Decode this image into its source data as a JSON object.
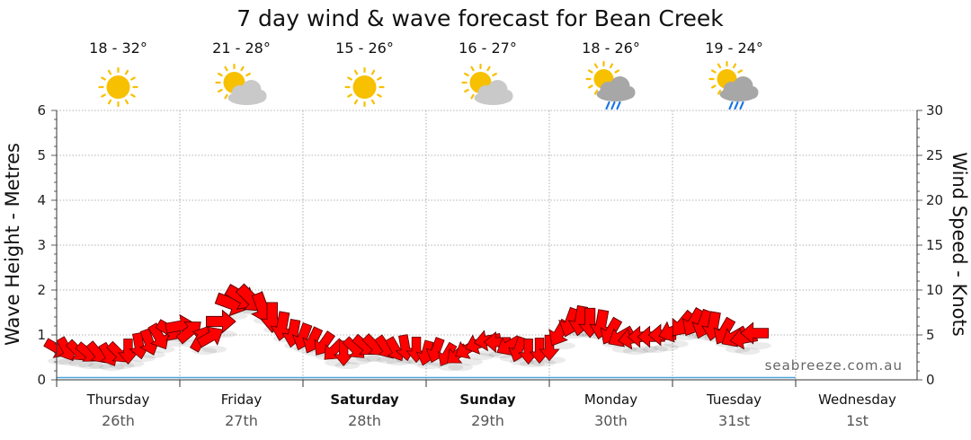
{
  "colors": {
    "arrow_fill": "#ff0000",
    "arrow_stroke": "#5a0000",
    "sun": "#f7c000",
    "cloud": "#c9c9c9",
    "rain": "#1a73e8"
  },
  "forecast": [
    {
      "temp": "18 - 32°",
      "icon": "sunny-icon"
    },
    {
      "temp": "21 - 28°",
      "icon": "partly-cloudy-icon"
    },
    {
      "temp": "15 - 26°",
      "icon": "sunny-icon"
    },
    {
      "temp": "16 - 27°",
      "icon": "partly-cloudy-icon"
    },
    {
      "temp": "18 - 26°",
      "icon": "sun-cloud-rain-icon"
    },
    {
      "temp": "19 - 24°",
      "icon": "sun-cloud-rain-icon"
    }
  ],
  "days": [
    {
      "name": "Thursday",
      "date": "26th",
      "bold": false
    },
    {
      "name": "Friday",
      "date": "27th",
      "bold": false
    },
    {
      "name": "Saturday",
      "date": "28th",
      "bold": true
    },
    {
      "name": "Sunday",
      "date": "29th",
      "bold": true
    },
    {
      "name": "Monday",
      "date": "30th",
      "bold": false
    },
    {
      "name": "Tuesday",
      "date": "31st",
      "bold": false
    },
    {
      "name": "Wednesday",
      "date": "1st",
      "bold": false
    }
  ],
  "watermark": "seabreeze.com.au",
  "chart_data": {
    "type": "line",
    "title": "7 day wind & wave forecast for Bean Creek",
    "ylabel_left": "Wave Height - Metres",
    "ylabel_right": "Wind Speed - Knots",
    "ylim_left": [
      0,
      6
    ],
    "ylim_right": [
      0,
      30
    ],
    "yticks_left": [
      "0",
      "1",
      "2",
      "3",
      "4",
      "5",
      "6"
    ],
    "yticks_right": [
      "0",
      "5",
      "10",
      "15",
      "20",
      "25",
      "30"
    ],
    "x_unit": "days from Thursday 26th 00:00",
    "grid": true,
    "series": [
      {
        "name": "wind",
        "points": [
          {
            "t": 0.0,
            "speed": 3.5,
            "dir": 30
          },
          {
            "t": 0.08,
            "speed": 3.4,
            "dir": 60
          },
          {
            "t": 0.17,
            "speed": 3.2,
            "dir": 45
          },
          {
            "t": 0.25,
            "speed": 3.0,
            "dir": 40
          },
          {
            "t": 0.33,
            "speed": 3.0,
            "dir": 50
          },
          {
            "t": 0.42,
            "speed": 2.8,
            "dir": 60
          },
          {
            "t": 0.5,
            "speed": 3.0,
            "dir": 45
          },
          {
            "t": 0.58,
            "speed": 3.2,
            "dir": 90
          },
          {
            "t": 0.67,
            "speed": 3.8,
            "dir": 80
          },
          {
            "t": 0.75,
            "speed": 4.2,
            "dir": 70
          },
          {
            "t": 0.83,
            "speed": 4.8,
            "dir": 60
          },
          {
            "t": 0.92,
            "speed": 5.5,
            "dir": 30
          },
          {
            "t": 1.0,
            "speed": 6.0,
            "dir": -10
          },
          {
            "t": 1.08,
            "speed": 5.4,
            "dir": -40
          },
          {
            "t": 1.17,
            "speed": 4.6,
            "dir": -60
          },
          {
            "t": 1.25,
            "speed": 4.8,
            "dir": -30
          },
          {
            "t": 1.33,
            "speed": 6.5,
            "dir": 0
          },
          {
            "t": 1.42,
            "speed": 8.5,
            "dir": 20
          },
          {
            "t": 1.5,
            "speed": 9.2,
            "dir": 30
          },
          {
            "t": 1.58,
            "speed": 9.0,
            "dir": 45
          },
          {
            "t": 1.67,
            "speed": 8.0,
            "dir": 70
          },
          {
            "t": 1.75,
            "speed": 7.0,
            "dir": 90
          },
          {
            "t": 1.83,
            "speed": 6.0,
            "dir": 100
          },
          {
            "t": 1.92,
            "speed": 5.2,
            "dir": 100
          },
          {
            "t": 2.0,
            "speed": 4.8,
            "dir": 110
          },
          {
            "t": 2.08,
            "speed": 4.4,
            "dir": 115
          },
          {
            "t": 2.17,
            "speed": 4.0,
            "dir": 125
          },
          {
            "t": 2.25,
            "speed": 3.3,
            "dir": 135
          },
          {
            "t": 2.33,
            "speed": 3.0,
            "dir": 90
          },
          {
            "t": 2.42,
            "speed": 3.5,
            "dir": 45
          },
          {
            "t": 2.5,
            "speed": 3.8,
            "dir": 40
          },
          {
            "t": 2.58,
            "speed": 3.8,
            "dir": 45
          },
          {
            "t": 2.67,
            "speed": 3.6,
            "dir": 55
          },
          {
            "t": 2.75,
            "speed": 3.4,
            "dir": 60
          },
          {
            "t": 2.83,
            "speed": 3.6,
            "dir": 80
          },
          {
            "t": 2.92,
            "speed": 3.4,
            "dir": 90
          },
          {
            "t": 3.0,
            "speed": 3.0,
            "dir": 105
          },
          {
            "t": 3.08,
            "speed": 3.3,
            "dir": 110
          },
          {
            "t": 3.17,
            "speed": 2.8,
            "dir": 120
          },
          {
            "t": 3.25,
            "speed": 2.8,
            "dir": 140
          },
          {
            "t": 3.33,
            "speed": 3.4,
            "dir": 150
          },
          {
            "t": 3.42,
            "speed": 4.0,
            "dir": 160
          },
          {
            "t": 3.5,
            "speed": 4.4,
            "dir": 170
          },
          {
            "t": 3.58,
            "speed": 4.2,
            "dir": 180
          },
          {
            "t": 3.67,
            "speed": 3.8,
            "dir": 150
          },
          {
            "t": 3.75,
            "speed": 3.4,
            "dir": 110
          },
          {
            "t": 3.83,
            "speed": 3.2,
            "dir": 90
          },
          {
            "t": 3.92,
            "speed": 3.3,
            "dir": 90
          },
          {
            "t": 4.0,
            "speed": 3.6,
            "dir": 90
          },
          {
            "t": 4.08,
            "speed": 5.2,
            "dir": 120
          },
          {
            "t": 4.17,
            "speed": 6.4,
            "dir": 110
          },
          {
            "t": 4.25,
            "speed": 6.6,
            "dir": 100
          },
          {
            "t": 4.33,
            "speed": 6.4,
            "dir": 90
          },
          {
            "t": 4.42,
            "speed": 6.2,
            "dir": 100
          },
          {
            "t": 4.5,
            "speed": 5.4,
            "dir": 120
          },
          {
            "t": 4.58,
            "speed": 4.8,
            "dir": 150
          },
          {
            "t": 4.67,
            "speed": 4.6,
            "dir": 170
          },
          {
            "t": 4.75,
            "speed": 4.8,
            "dir": 180
          },
          {
            "t": 4.83,
            "speed": 4.8,
            "dir": 180
          },
          {
            "t": 4.92,
            "speed": 5.0,
            "dir": 180
          },
          {
            "t": 5.0,
            "speed": 5.4,
            "dir": 160
          },
          {
            "t": 5.08,
            "speed": 6.2,
            "dir": 130
          },
          {
            "t": 5.17,
            "speed": 6.4,
            "dir": 120
          },
          {
            "t": 5.25,
            "speed": 6.2,
            "dir": 110
          },
          {
            "t": 5.33,
            "speed": 6.0,
            "dir": 100
          },
          {
            "t": 5.42,
            "speed": 5.4,
            "dir": 120
          },
          {
            "t": 5.5,
            "speed": 4.8,
            "dir": 150
          },
          {
            "t": 5.58,
            "speed": 4.6,
            "dir": 170
          },
          {
            "t": 5.67,
            "speed": 5.2,
            "dir": 180
          }
        ]
      },
      {
        "name": "wave",
        "x": [
          0,
          0.5,
          1.0,
          1.5,
          2.0,
          2.5,
          3.0,
          3.5,
          4.0,
          4.5,
          5.0,
          5.5,
          6.0
        ],
        "y": [
          0.05,
          0.05,
          0.05,
          0.05,
          0.05,
          0.05,
          0.05,
          0.05,
          0.05,
          0.05,
          0.05,
          0.05,
          0.05
        ]
      }
    ]
  }
}
